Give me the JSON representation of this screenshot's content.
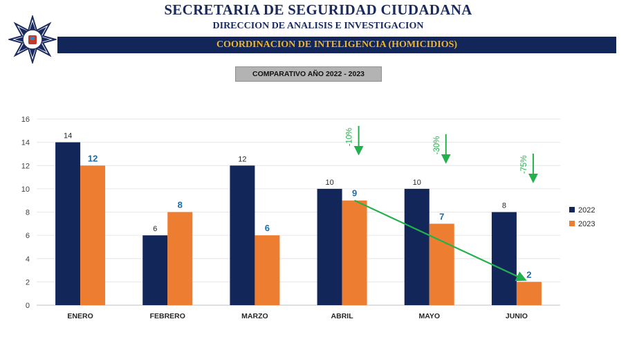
{
  "header": {
    "title": "SECRETARIA DE SEGURIDAD CIUDADANA",
    "subtitle": "DIRECCION DE ANALISIS E INVESTIGACION",
    "band_text": "COORDINACION DE INTELIGENCIA (HOMICIDIOS)",
    "badge": "COMPARATIVO AÑO 2022 - 2023",
    "logo_icon": "police-star-badge-icon"
  },
  "colors": {
    "series_2022": "#13265a",
    "series_2023": "#ed7d31",
    "label_2023": "#1f6aa5",
    "trend": "#22b14c",
    "band": "#13265a",
    "band_text": "#f0b429"
  },
  "chart_data": {
    "type": "bar",
    "title": "COMPARATIVO AÑO 2022 - 2023",
    "categories": [
      "ENERO",
      "FEBRERO",
      "MARZO",
      "ABRIL",
      "MAYO",
      "JUNIO"
    ],
    "series": [
      {
        "name": "2022",
        "values": [
          14,
          6,
          12,
          10,
          10,
          8
        ]
      },
      {
        "name": "2023",
        "values": [
          12,
          8,
          6,
          9,
          7,
          2
        ]
      }
    ],
    "ylim": [
      0,
      16
    ],
    "yticks": [
      0,
      2,
      4,
      6,
      8,
      10,
      12,
      14,
      16
    ],
    "legend": "right",
    "annotations": [
      {
        "category": "ABRIL",
        "text": "-10%"
      },
      {
        "category": "MAYO",
        "text": "-30%"
      },
      {
        "category": "JUNIO",
        "text": "-75%"
      }
    ],
    "trend_line": {
      "from": "ABRIL",
      "to": "JUNIO",
      "series": "2023"
    }
  }
}
